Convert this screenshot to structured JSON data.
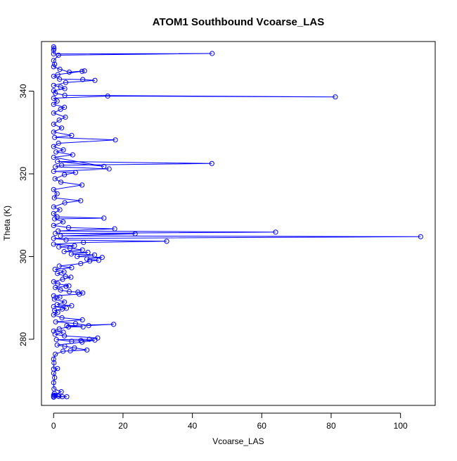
{
  "chart_data": {
    "type": "line",
    "title": "ATOM1 Southbound Vcoarse_LAS",
    "xlabel": "Vcoarse_LAS",
    "ylabel": "Theta (K)",
    "xlim": [
      -3.5,
      110
    ],
    "ylim": [
      264,
      352
    ],
    "x_ticks": [
      0,
      20,
      40,
      60,
      80,
      100
    ],
    "y_ticks": [
      280,
      300,
      320,
      340
    ],
    "x_tick_labels": [
      "0",
      "20",
      "40",
      "60",
      "80",
      "100"
    ],
    "y_tick_labels": [
      "280",
      "300",
      "320",
      "340"
    ],
    "grid": false,
    "legend": "none",
    "colors": {
      "series": "#0000ff",
      "axes": "#000000",
      "background": "#ffffff"
    },
    "marker": "open-circle",
    "series": [
      {
        "values_xy": [
          [
            0.0,
            266.0
          ],
          [
            0.4,
            266.4
          ],
          [
            0.2,
            266.9
          ],
          [
            1.2,
            266.3
          ],
          [
            2.5,
            266.1
          ],
          [
            0.0,
            266.2
          ],
          [
            3.8,
            266.1
          ],
          [
            1.5,
            266.2
          ],
          [
            0.0,
            266.5
          ],
          [
            2.2,
            267.3
          ],
          [
            0.1,
            268.0
          ],
          [
            0.0,
            269.5
          ],
          [
            0.3,
            270.7
          ],
          [
            0.0,
            271.8
          ],
          [
            1.1,
            272.9
          ],
          [
            0.0,
            272.8
          ],
          [
            0.1,
            274.3
          ],
          [
            0.0,
            275.2
          ],
          [
            0.5,
            276.4
          ],
          [
            2.7,
            277.1
          ],
          [
            4.8,
            277.2
          ],
          [
            9.6,
            277.4
          ],
          [
            6.0,
            277.9
          ],
          [
            3.2,
            278.3
          ],
          [
            1.0,
            278.6
          ],
          [
            8.2,
            279.3
          ],
          [
            11.9,
            279.8
          ],
          [
            7.9,
            279.7
          ],
          [
            5.2,
            279.5
          ],
          [
            0.8,
            279.9
          ],
          [
            10.3,
            280.0
          ],
          [
            12.7,
            280.3
          ],
          [
            3.1,
            280.8
          ],
          [
            0.4,
            281.2
          ],
          [
            2.8,
            281.7
          ],
          [
            0.0,
            282.0
          ],
          [
            1.6,
            282.5
          ],
          [
            4.3,
            283.0
          ],
          [
            8.5,
            283.0
          ],
          [
            3.8,
            283.3
          ],
          [
            17.3,
            283.6
          ],
          [
            10.1,
            283.3
          ],
          [
            6.3,
            283.8
          ],
          [
            0.6,
            284.2
          ],
          [
            8.3,
            284.7
          ],
          [
            2.4,
            285.2
          ],
          [
            0.0,
            285.9
          ],
          [
            1.2,
            286.5
          ],
          [
            0.3,
            287.0
          ],
          [
            2.5,
            287.3
          ],
          [
            3.7,
            287.5
          ],
          [
            0.0,
            287.9
          ],
          [
            5.2,
            288.1
          ],
          [
            1.0,
            288.4
          ],
          [
            3.1,
            289.0
          ],
          [
            0.2,
            289.7
          ],
          [
            1.8,
            290.2
          ],
          [
            0.0,
            290.5
          ],
          [
            7.4,
            290.9
          ],
          [
            8.4,
            291.2
          ],
          [
            7.0,
            291.4
          ],
          [
            4.5,
            291.5
          ],
          [
            2.0,
            291.9
          ],
          [
            0.5,
            292.5
          ],
          [
            3.6,
            292.8
          ],
          [
            4.4,
            292.9
          ],
          [
            1.2,
            293.4
          ],
          [
            0.0,
            293.9
          ],
          [
            2.6,
            294.5
          ],
          [
            5.0,
            295.0
          ],
          [
            3.4,
            295.2
          ],
          [
            1.1,
            295.9
          ],
          [
            3.0,
            296.3
          ],
          [
            0.4,
            296.9
          ],
          [
            5.2,
            297.3
          ],
          [
            1.6,
            297.7
          ],
          [
            7.8,
            298.3
          ],
          [
            10.4,
            298.9
          ],
          [
            13.0,
            299.1
          ],
          [
            9.6,
            299.4
          ],
          [
            14.0,
            299.8
          ],
          [
            6.8,
            300.0
          ],
          [
            11.8,
            300.4
          ],
          [
            5.1,
            300.6
          ],
          [
            9.9,
            301.0
          ],
          [
            3.0,
            301.2
          ],
          [
            8.3,
            301.6
          ],
          [
            4.7,
            302.0
          ],
          [
            1.5,
            302.3
          ],
          [
            6.0,
            302.6
          ],
          [
            0.0,
            303.0
          ],
          [
            8.6,
            303.4
          ],
          [
            32.6,
            303.7
          ],
          [
            3.6,
            304.0
          ],
          [
            0.0,
            304.4
          ],
          [
            105.8,
            304.8
          ],
          [
            2.0,
            305.0
          ],
          [
            23.5,
            305.5
          ],
          [
            0.5,
            305.6
          ],
          [
            64.0,
            305.9
          ],
          [
            1.3,
            306.2
          ],
          [
            17.6,
            306.7
          ],
          [
            4.3,
            307.0
          ],
          [
            0.0,
            307.5
          ],
          [
            2.7,
            308.4
          ],
          [
            0.3,
            309.1
          ],
          [
            14.5,
            309.3
          ],
          [
            1.0,
            309.6
          ],
          [
            0.0,
            310.4
          ],
          [
            1.8,
            311.3
          ],
          [
            0.0,
            312.0
          ],
          [
            3.2,
            313.0
          ],
          [
            7.8,
            313.5
          ],
          [
            0.2,
            314.2
          ],
          [
            1.0,
            315.2
          ],
          [
            0.0,
            316.2
          ],
          [
            8.2,
            317.3
          ],
          [
            2.1,
            318.0
          ],
          [
            0.4,
            318.8
          ],
          [
            3.1,
            319.8
          ],
          [
            6.3,
            320.3
          ],
          [
            0.0,
            320.6
          ],
          [
            16.0,
            321.2
          ],
          [
            0.5,
            321.7
          ],
          [
            2.3,
            322.1
          ],
          [
            45.6,
            322.5
          ],
          [
            1.1,
            323.0
          ],
          [
            14.5,
            321.8
          ],
          [
            0.0,
            324.0
          ],
          [
            5.5,
            324.6
          ],
          [
            0.7,
            325.3
          ],
          [
            2.8,
            325.8
          ],
          [
            0.0,
            326.6
          ],
          [
            1.4,
            327.4
          ],
          [
            17.8,
            328.2
          ],
          [
            0.3,
            328.8
          ],
          [
            5.2,
            329.3
          ],
          [
            0.0,
            330.1
          ],
          [
            2.3,
            331.1
          ],
          [
            0.0,
            332.0
          ],
          [
            1.6,
            333.0
          ],
          [
            3.4,
            333.7
          ],
          [
            0.0,
            334.7
          ],
          [
            2.0,
            335.6
          ],
          [
            3.1,
            336.1
          ],
          [
            0.0,
            336.8
          ],
          [
            1.0,
            337.6
          ],
          [
            0.0,
            338.3
          ],
          [
            15.6,
            338.8
          ],
          [
            81.2,
            338.6
          ],
          [
            3.2,
            339.0
          ],
          [
            0.5,
            339.5
          ],
          [
            0.0,
            340.1
          ],
          [
            3.2,
            340.6
          ],
          [
            2.0,
            341.0
          ],
          [
            0.0,
            341.4
          ],
          [
            3.5,
            342.1
          ],
          [
            11.9,
            342.6
          ],
          [
            8.4,
            342.8
          ],
          [
            1.7,
            342.9
          ],
          [
            0.0,
            343.6
          ],
          [
            1.2,
            344.0
          ],
          [
            8.2,
            344.8
          ],
          [
            8.9,
            344.9
          ],
          [
            4.5,
            344.6
          ],
          [
            1.8,
            345.3
          ],
          [
            0.0,
            345.9
          ],
          [
            0.3,
            346.5
          ],
          [
            0.0,
            347.4
          ],
          [
            1.4,
            348.7
          ],
          [
            45.7,
            349.1
          ],
          [
            0.0,
            349.0
          ],
          [
            0.0,
            349.9
          ],
          [
            0.1,
            350.3
          ],
          [
            0.0,
            350.7
          ]
        ]
      }
    ]
  }
}
